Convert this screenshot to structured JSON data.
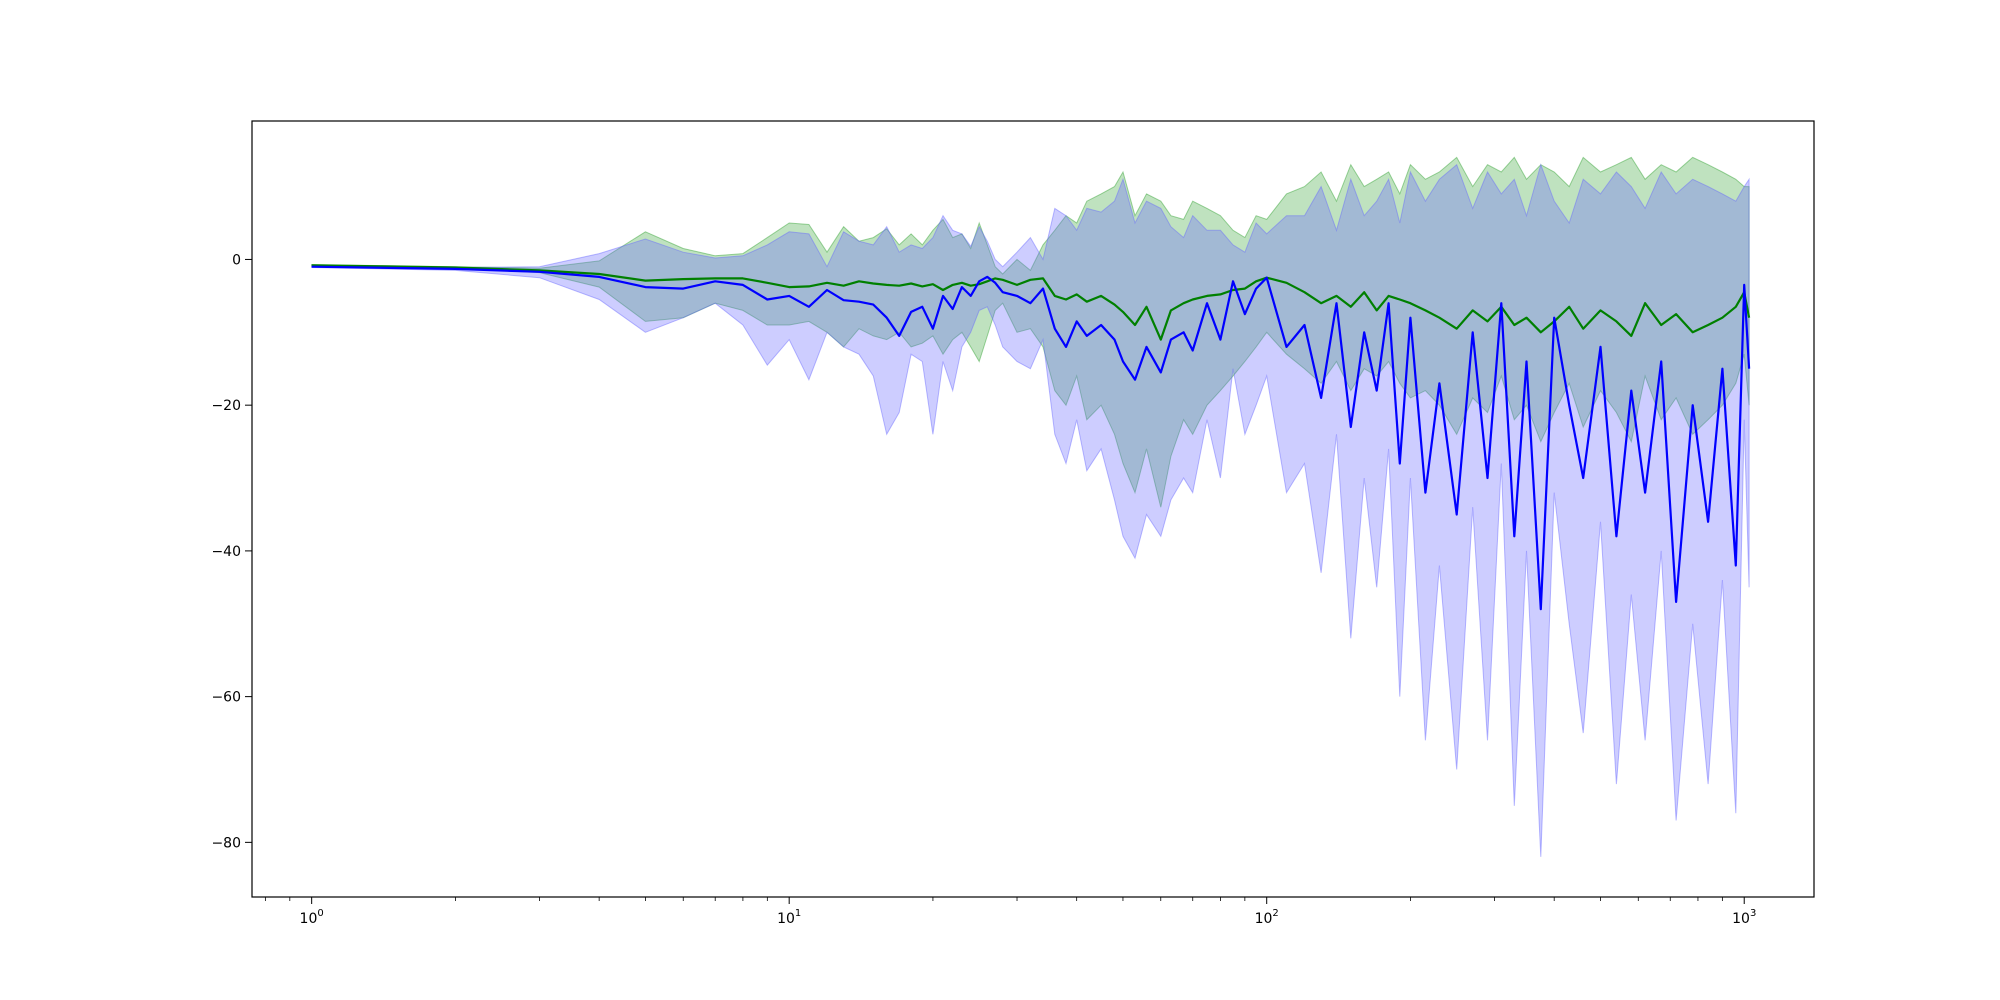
{
  "chart_data": {
    "type": "line",
    "title": "",
    "xlabel": "",
    "ylabel": "",
    "x_scale": "log",
    "xlim": [
      0.75,
      1400
    ],
    "ylim": [
      -87.5,
      19
    ],
    "grid": false,
    "legend": "none",
    "x_ticks": [
      {
        "value": 1,
        "label": "10",
        "exp": "0"
      },
      {
        "value": 10,
        "label": "10",
        "exp": "1"
      },
      {
        "value": 100,
        "label": "10",
        "exp": "2"
      },
      {
        "value": 1000,
        "label": "10",
        "exp": "3"
      }
    ],
    "y_ticks": [
      {
        "value": 0,
        "label": "0"
      },
      {
        "value": -20,
        "label": "−20"
      },
      {
        "value": -40,
        "label": "−40"
      },
      {
        "value": -60,
        "label": "−60"
      },
      {
        "value": -80,
        "label": "−80"
      }
    ],
    "x": [
      1,
      2,
      3,
      4,
      5,
      6,
      7,
      8,
      9,
      10,
      11,
      12,
      13,
      14,
      15,
      16,
      17,
      18,
      19,
      20,
      21,
      22,
      23,
      24,
      25,
      26,
      27,
      28,
      30,
      32,
      34,
      36,
      38,
      40,
      42,
      45,
      48,
      50,
      53,
      56,
      60,
      63,
      67,
      70,
      75,
      80,
      85,
      90,
      95,
      100,
      110,
      120,
      130,
      140,
      150,
      160,
      170,
      180,
      190,
      200,
      215,
      230,
      250,
      270,
      290,
      310,
      330,
      350,
      375,
      400,
      430,
      460,
      500,
      540,
      580,
      620,
      670,
      720,
      780,
      840,
      900,
      960,
      1000,
      1024
    ],
    "series": [
      {
        "color": "#008000",
        "band_color": "#2ca02c",
        "band_opacity": 0.3,
        "mean": [
          -0.8,
          -1.1,
          -1.5,
          -2.0,
          -2.9,
          -2.7,
          -2.6,
          -2.6,
          -3.2,
          -3.8,
          -3.7,
          -3.2,
          -3.6,
          -3.0,
          -3.3,
          -3.5,
          -3.6,
          -3.3,
          -3.7,
          -3.4,
          -4.2,
          -3.5,
          -3.2,
          -3.6,
          -3.4,
          -3.0,
          -2.6,
          -2.8,
          -3.5,
          -2.8,
          -2.6,
          -5.0,
          -5.5,
          -4.8,
          -5.8,
          -5.0,
          -6.2,
          -7.2,
          -9.0,
          -6.5,
          -11.0,
          -7.0,
          -6.0,
          -5.5,
          -5.0,
          -4.8,
          -4.2,
          -4.0,
          -3.0,
          -2.5,
          -3.2,
          -4.5,
          -6.0,
          -5.0,
          -6.5,
          -4.5,
          -7.0,
          -5.0,
          -5.5,
          -6.0,
          -7.0,
          -8.0,
          -9.5,
          -7.0,
          -8.5,
          -6.5,
          -9.0,
          -8.0,
          -10.0,
          -8.5,
          -6.5,
          -9.5,
          -7.0,
          -8.5,
          -10.5,
          -6.0,
          -9.0,
          -7.5,
          -10.0,
          -9.0,
          -8.0,
          -6.5,
          -4.5,
          -8.0
        ],
        "lower": [
          -0.9,
          -1.2,
          -1.8,
          -3.8,
          -8.5,
          -8.0,
          -6.0,
          -7.0,
          -9.0,
          -9.0,
          -8.5,
          -10.0,
          -12.0,
          -9.5,
          -10.5,
          -11.0,
          -10.0,
          -12.0,
          -11.5,
          -10.5,
          -13.0,
          -11.0,
          -10.0,
          -12.0,
          -14.0,
          -10.5,
          -7.0,
          -6.0,
          -10.0,
          -9.5,
          -12.0,
          -18.0,
          -20.0,
          -16.0,
          -22.0,
          -20.0,
          -24.0,
          -28.0,
          -32.0,
          -26.0,
          -34.0,
          -27.0,
          -22.0,
          -24.0,
          -20.0,
          -18.0,
          -16.0,
          -14.0,
          -12.0,
          -10.0,
          -13.0,
          -15.0,
          -17.0,
          -14.0,
          -18.0,
          -15.0,
          -16.0,
          -14.0,
          -17.0,
          -19.0,
          -18.0,
          -20.0,
          -24.0,
          -19.0,
          -21.0,
          -16.0,
          -22.0,
          -20.0,
          -25.0,
          -21.0,
          -17.0,
          -23.0,
          -18.0,
          -21.0,
          -25.0,
          -16.0,
          -22.0,
          -19.0,
          -24.0,
          -22.0,
          -20.0,
          -17.0,
          -13.0,
          -20.0
        ],
        "upper": [
          -0.7,
          -1.0,
          -1.2,
          -0.2,
          3.8,
          1.5,
          0.5,
          0.8,
          3.0,
          5.0,
          4.8,
          1.0,
          4.5,
          2.5,
          3.0,
          4.2,
          2.0,
          3.5,
          2.0,
          4.0,
          5.5,
          3.0,
          3.5,
          1.5,
          5.0,
          2.0,
          -1.0,
          -2.0,
          0.0,
          -1.5,
          2.0,
          4.0,
          6.0,
          5.0,
          8.0,
          9.0,
          10.0,
          12.0,
          6.0,
          9.0,
          8.0,
          6.0,
          5.5,
          8.0,
          7.0,
          6.0,
          4.0,
          3.0,
          6.0,
          5.5,
          9.0,
          10.0,
          12.0,
          8.0,
          13.0,
          10.0,
          11.0,
          12.0,
          9.0,
          13.0,
          11.0,
          12.0,
          14.0,
          10.0,
          13.0,
          12.0,
          14.0,
          11.0,
          13.0,
          12.0,
          10.0,
          14.0,
          12.0,
          13.0,
          14.0,
          11.0,
          13.0,
          12.0,
          14.0,
          13.0,
          12.0,
          11.0,
          10.0,
          10.0
        ]
      },
      {
        "color": "#0000ff",
        "band_color": "#6666ff",
        "band_opacity": 0.33,
        "mean": [
          -1.0,
          -1.3,
          -1.7,
          -2.4,
          -3.8,
          -4.0,
          -3.0,
          -3.5,
          -5.5,
          -5.0,
          -6.5,
          -4.2,
          -5.6,
          -5.8,
          -6.2,
          -8.0,
          -10.5,
          -7.2,
          -6.5,
          -9.5,
          -5.0,
          -6.8,
          -3.8,
          -5.0,
          -3.0,
          -2.4,
          -3.2,
          -4.5,
          -5.0,
          -6.0,
          -4.0,
          -9.5,
          -12.0,
          -8.5,
          -10.5,
          -9.0,
          -11.0,
          -14.0,
          -16.5,
          -12.0,
          -15.5,
          -11.0,
          -10.0,
          -12.5,
          -6.0,
          -11.0,
          -3.0,
          -7.5,
          -4.0,
          -2.5,
          -12.0,
          -9.0,
          -19.0,
          -6.0,
          -23.0,
          -10.0,
          -18.0,
          -6.0,
          -28.0,
          -8.0,
          -32.0,
          -17.0,
          -35.0,
          -10.0,
          -30.0,
          -6.0,
          -38.0,
          -14.0,
          -48.0,
          -8.0,
          -20.0,
          -30.0,
          -12.0,
          -38.0,
          -18.0,
          -32.0,
          -14.0,
          -47.0,
          -20.0,
          -36.0,
          -15.0,
          -42.0,
          -3.5,
          -15.0
        ],
        "lower": [
          -1.1,
          -1.5,
          -2.5,
          -5.5,
          -10.0,
          -8.0,
          -6.0,
          -9.0,
          -14.5,
          -11.0,
          -16.5,
          -10.0,
          -12.0,
          -13.0,
          -16.0,
          -24.0,
          -21.0,
          -13.0,
          -14.0,
          -24.0,
          -14.0,
          -18.0,
          -12.0,
          -10.0,
          -7.0,
          -6.5,
          -9.0,
          -12.0,
          -14.0,
          -15.0,
          -11.0,
          -24.0,
          -28.0,
          -22.0,
          -29.0,
          -26.0,
          -33.0,
          -38.0,
          -41.0,
          -35.0,
          -38.0,
          -33.0,
          -30.0,
          -32.0,
          -22.0,
          -30.0,
          -15.0,
          -24.0,
          -20.0,
          -16.0,
          -32.0,
          -28.0,
          -43.0,
          -24.0,
          -52.0,
          -30.0,
          -45.0,
          -26.0,
          -60.0,
          -30.0,
          -66.0,
          -42.0,
          -70.0,
          -34.0,
          -66.0,
          -28.0,
          -75.0,
          -40.0,
          -82.0,
          -32.0,
          -50.0,
          -65.0,
          -36.0,
          -72.0,
          -46.0,
          -66.0,
          -40.0,
          -77.0,
          -50.0,
          -72.0,
          -44.0,
          -76.0,
          -22.0,
          -45.0
        ],
        "upper": [
          -0.9,
          -1.1,
          -1.0,
          0.8,
          2.8,
          1.0,
          0.2,
          0.5,
          2.0,
          3.8,
          3.5,
          -1.0,
          3.8,
          2.5,
          2.0,
          4.5,
          1.0,
          2.0,
          1.5,
          3.0,
          6.0,
          4.0,
          3.5,
          1.8,
          4.5,
          2.5,
          0.0,
          -1.0,
          1.0,
          3.0,
          0.0,
          7.0,
          6.0,
          4.0,
          7.0,
          6.5,
          8.0,
          11.0,
          5.0,
          8.0,
          7.0,
          4.5,
          3.0,
          6.0,
          4.0,
          4.0,
          2.0,
          1.0,
          5.0,
          3.5,
          6.0,
          6.0,
          10.0,
          4.0,
          11.0,
          6.0,
          8.0,
          11.0,
          5.0,
          12.0,
          8.0,
          11.0,
          13.0,
          7.0,
          12.0,
          9.0,
          11.0,
          6.0,
          13.0,
          8.0,
          5.0,
          11.0,
          9.0,
          12.0,
          10.0,
          7.0,
          12.0,
          9.0,
          11.0,
          10.0,
          9.0,
          8.0,
          10.0,
          11.0
        ]
      }
    ]
  }
}
